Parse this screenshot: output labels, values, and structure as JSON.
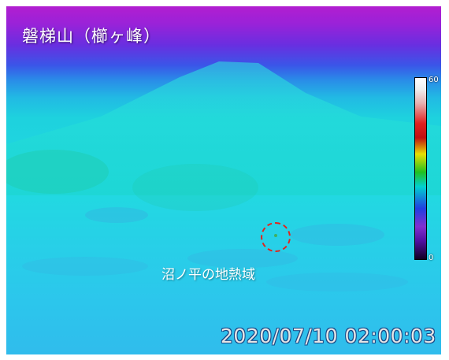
{
  "title": "磐梯山（櫛ヶ峰）",
  "colorbar": {
    "max_label": "60",
    "min_label": "0"
  },
  "annotation": {
    "label": "沼ノ平の地熱域"
  },
  "timestamp": "2020/07/10 02:00:03",
  "colors": {
    "marker": "#e2241c",
    "sky": "#9a22d8",
    "ground": "#22d8e2"
  }
}
